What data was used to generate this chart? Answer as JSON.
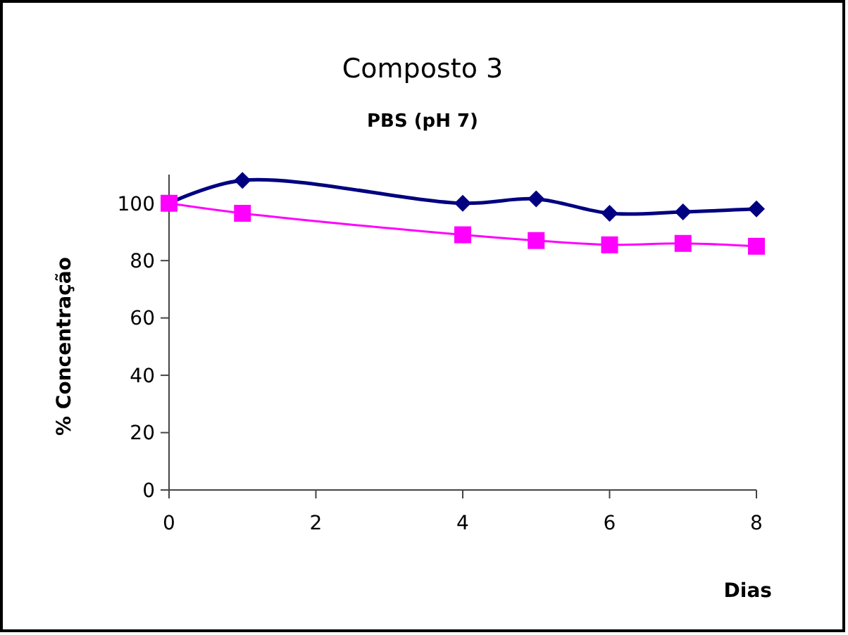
{
  "chart_data": {
    "type": "line",
    "title": "Composto 3",
    "subtitle": "PBS (pH 7)",
    "xlabel": "Dias",
    "ylabel": "% Concentração",
    "x": [
      0,
      1,
      4,
      5,
      6,
      7,
      8
    ],
    "series": [
      {
        "color": "#000080",
        "marker": "diamond",
        "values": [
          100,
          108,
          100,
          101.5,
          96.5,
          97,
          98
        ]
      },
      {
        "color": "#ff00ff",
        "marker": "square",
        "values": [
          100,
          96.5,
          89,
          87,
          85.5,
          86,
          85
        ]
      }
    ],
    "xlim": [
      0,
      8
    ],
    "xticks": [
      0,
      2,
      4,
      6,
      8
    ],
    "ylim": [
      0,
      110
    ],
    "yticks": [
      0,
      20,
      40,
      60,
      80,
      100
    ],
    "grid": false,
    "line_style": "solid"
  }
}
